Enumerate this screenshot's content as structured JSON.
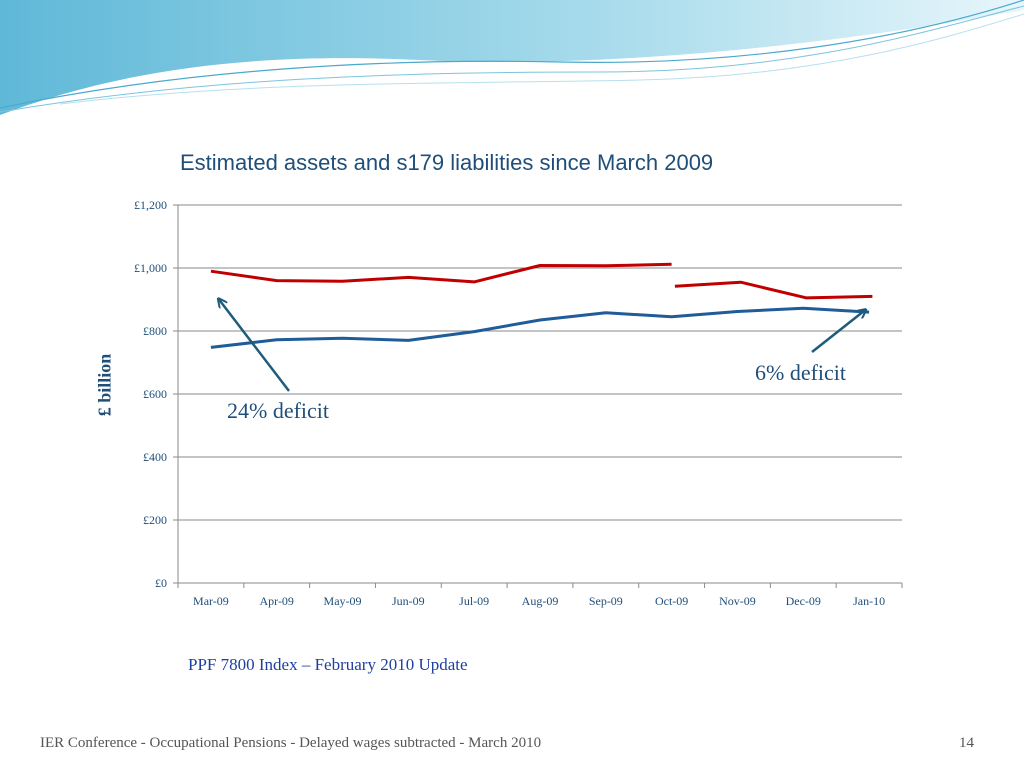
{
  "chart_data": {
    "type": "line",
    "title": "Estimated assets and s179 liabilities since March 2009",
    "ylabel": "£ billion",
    "categories": [
      "Mar-09",
      "Apr-09",
      "May-09",
      "Jun-09",
      "Jul-09",
      "Aug-09",
      "Sep-09",
      "Oct-09",
      "Nov-09",
      "Dec-09",
      "Jan-10"
    ],
    "y_tick_labels": [
      "£0",
      "£200",
      "£400",
      "£600",
      "£800",
      "£1,000",
      "£1,200"
    ],
    "y_ticks": [
      0,
      200,
      400,
      600,
      800,
      1000,
      1200
    ],
    "ylim": [
      0,
      1200
    ],
    "grid": "horizontal",
    "series": [
      {
        "color": "#c00000",
        "segments": [
          {
            "start": 0,
            "values": [
              990,
              960,
              958,
              970,
              956,
              1008,
              1007,
              1012
            ]
          },
          {
            "start": 7,
            "values": [
              942,
              955,
              905,
              910
            ]
          }
        ]
      },
      {
        "color": "#1f5c99",
        "segments": [
          {
            "start": 0,
            "values": [
              748,
              772,
              777,
              770,
              798,
              835,
              858,
              845,
              862,
              872,
              860
            ]
          }
        ]
      }
    ],
    "annotations": [
      {
        "text": "24% deficit",
        "category": "Mar-09"
      },
      {
        "text": "6% deficit",
        "category": "Jan-10"
      }
    ]
  },
  "source_note": "PPF 7800 Index – February 2010 Update",
  "footer": "IER Conference - Occupational Pensions - Delayed wages subtracted - March 2010",
  "page_number": "14"
}
